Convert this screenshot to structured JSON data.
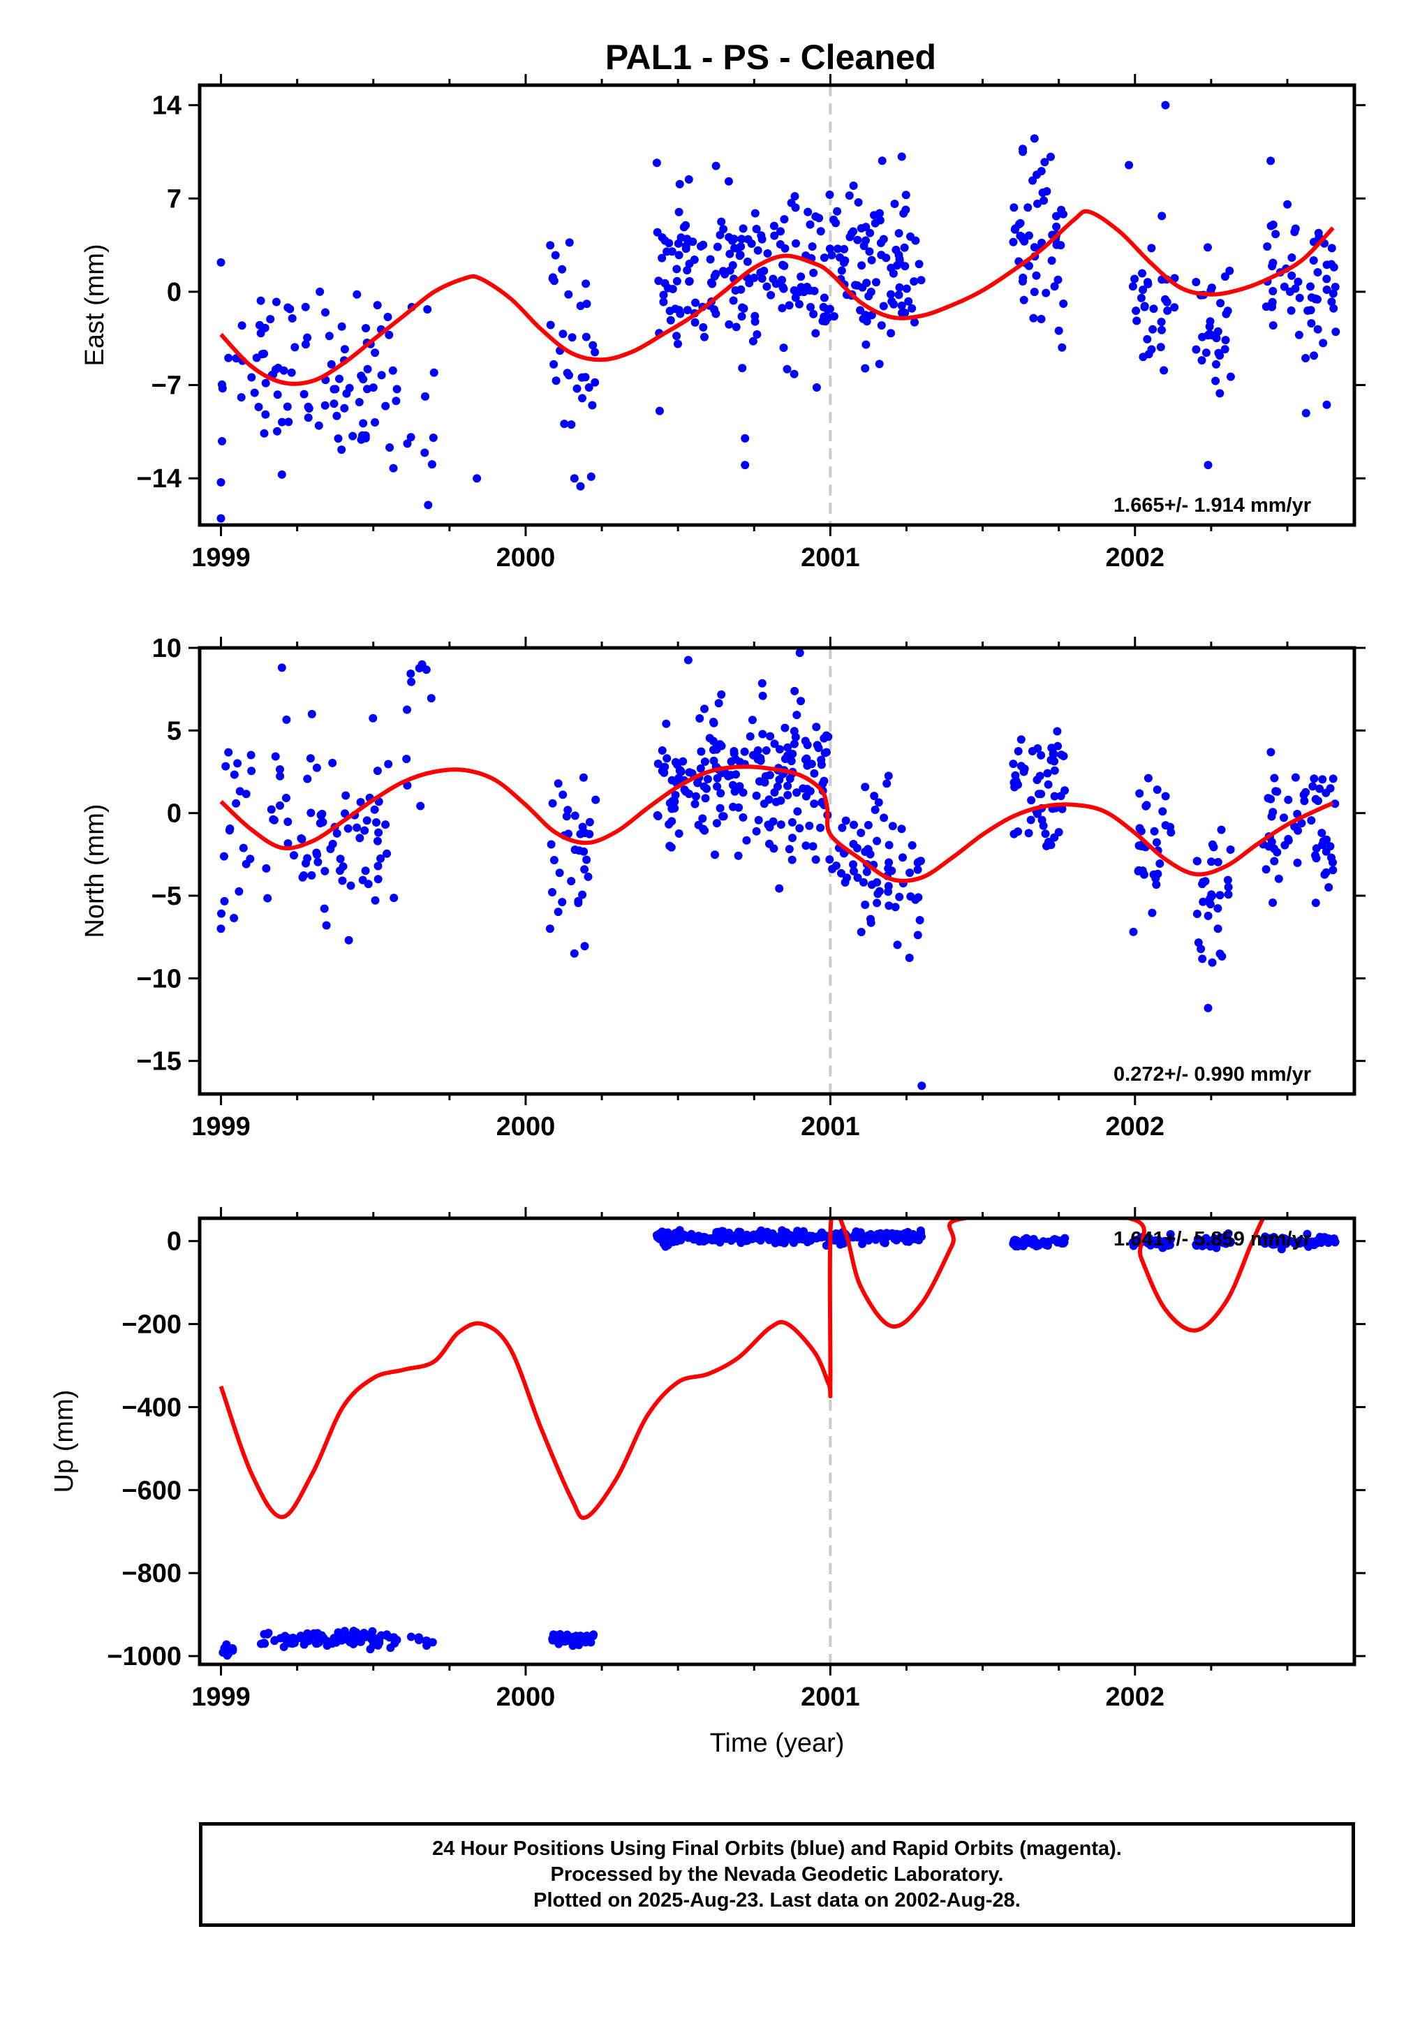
{
  "title": "PAL1  - PS - Cleaned",
  "footer": {
    "line1": "24 Hour Positions Using Final Orbits (blue) and Rapid Orbits (magenta).",
    "line2": "Processed by the Nevada Geodetic Laboratory.",
    "line3": "Plotted on 2025-Aug-23. Last data on 2002-Aug-28."
  },
  "colors": {
    "points": "#0000ff",
    "model": "#ff0000",
    "dashed_line": "#cccccc"
  },
  "chart_data": [
    {
      "type": "scatter",
      "name": "east",
      "ylabel": "East (mm)",
      "xlabel": "",
      "xlim": [
        1998.93,
        2002.72
      ],
      "ylim": [
        -17.5,
        15.5
      ],
      "xticks": [
        1999,
        2000,
        2001,
        2002
      ],
      "xtick_labels": [
        "1999",
        "2000",
        "2001",
        "2002"
      ],
      "yticks": [
        -14,
        -7,
        0,
        7,
        14
      ],
      "ytick_labels": [
        "−14",
        "−7",
        "0",
        "7",
        "14"
      ],
      "vline": 2001.0,
      "rate_label": "1.665+/- 1.914 mm/yr",
      "model_curve": [
        [
          1999.0,
          -3.2
        ],
        [
          1999.1,
          -5.6
        ],
        [
          1999.2,
          -6.8
        ],
        [
          1999.3,
          -6.7
        ],
        [
          1999.4,
          -5.4
        ],
        [
          1999.5,
          -3.6
        ],
        [
          1999.6,
          -1.8
        ],
        [
          1999.7,
          0.0
        ],
        [
          1999.8,
          1.0
        ],
        [
          1999.85,
          1.0
        ],
        [
          1999.95,
          -0.5
        ],
        [
          2000.05,
          -2.8
        ],
        [
          2000.15,
          -4.6
        ],
        [
          2000.25,
          -5.1
        ],
        [
          2000.35,
          -4.5
        ],
        [
          2000.45,
          -3.2
        ],
        [
          2000.55,
          -1.8
        ],
        [
          2000.65,
          0.0
        ],
        [
          2000.75,
          1.8
        ],
        [
          2000.85,
          2.7
        ],
        [
          2000.95,
          2.1
        ],
        [
          2001.0,
          1.4
        ],
        [
          2001.1,
          -0.8
        ],
        [
          2001.2,
          -1.9
        ],
        [
          2001.3,
          -1.8
        ],
        [
          2001.4,
          -1.0
        ],
        [
          2001.5,
          0.1
        ],
        [
          2001.6,
          1.6
        ],
        [
          2001.7,
          3.3
        ],
        [
          2001.8,
          5.4
        ],
        [
          2001.85,
          6.0
        ],
        [
          2001.95,
          4.5
        ],
        [
          2002.05,
          2.2
        ],
        [
          2002.15,
          0.3
        ],
        [
          2002.25,
          -0.2
        ],
        [
          2002.35,
          0.2
        ],
        [
          2002.45,
          1.1
        ],
        [
          2002.55,
          2.4
        ],
        [
          2002.65,
          4.8
        ]
      ],
      "clusters": [
        {
          "x0": 1999.0,
          "x1": 1999.58,
          "ymean": -6,
          "ysd": 3.2,
          "n": 95
        },
        {
          "x0": 1999.6,
          "x1": 1999.7,
          "ymean": -7,
          "ysd": 4.5,
          "n": 9
        },
        {
          "x0": 2000.08,
          "x1": 2000.23,
          "ymean": -5,
          "ysd": 4,
          "n": 32
        },
        {
          "x0": 2000.43,
          "x1": 2001.3,
          "ymean": 1.5,
          "ysd": 3,
          "n": 260
        },
        {
          "x0": 2001.6,
          "x1": 2001.77,
          "ymean": 3.5,
          "ysd": 3,
          "n": 55
        },
        {
          "x0": 2001.99,
          "x1": 2002.13,
          "ymean": -1,
          "ysd": 3.5,
          "n": 30
        },
        {
          "x0": 2002.2,
          "x1": 2002.32,
          "ymean": -3,
          "ysd": 3,
          "n": 30
        },
        {
          "x0": 2002.42,
          "x1": 2002.66,
          "ymean": 0,
          "ysd": 3.2,
          "n": 60
        }
      ],
      "outliers": [
        [
          1999.0,
          -17
        ],
        [
          1999.0,
          -14.3
        ],
        [
          1999.68,
          -16
        ],
        [
          2000.16,
          -14
        ],
        [
          2000.18,
          -14.6
        ],
        [
          1999.84,
          -14
        ],
        [
          2000.72,
          -11
        ],
        [
          2000.72,
          -13
        ],
        [
          2001.98,
          9.5
        ],
        [
          2002.1,
          14
        ],
        [
          2002.24,
          -13
        ],
        [
          1999.0,
          2.2
        ],
        [
          2001.67,
          11.5
        ]
      ]
    },
    {
      "type": "scatter",
      "name": "north",
      "ylabel": "North (mm)",
      "xlabel": "",
      "xlim": [
        1998.93,
        2002.72
      ],
      "ylim": [
        -17,
        10
      ],
      "xticks": [
        1999,
        2000,
        2001,
        2002
      ],
      "xtick_labels": [
        "1999",
        "2000",
        "2001",
        "2002"
      ],
      "yticks": [
        -15,
        -10,
        -5,
        0,
        5,
        10
      ],
      "ytick_labels": [
        "−15",
        "−10",
        "−5",
        "0",
        "5",
        "10"
      ],
      "vline": 2001.0,
      "rate_label": "0.272+/- 0.990 mm/yr",
      "model_curve": [
        [
          1999.0,
          0.7
        ],
        [
          1999.1,
          -1.0
        ],
        [
          1999.2,
          -2.1
        ],
        [
          1999.3,
          -1.7
        ],
        [
          1999.4,
          -0.5
        ],
        [
          1999.5,
          0.8
        ],
        [
          1999.6,
          1.9
        ],
        [
          1999.7,
          2.5
        ],
        [
          1999.8,
          2.6
        ],
        [
          1999.9,
          2.0
        ],
        [
          2000.0,
          0.5
        ],
        [
          2000.1,
          -1.2
        ],
        [
          2000.2,
          -1.8
        ],
        [
          2000.3,
          -1.1
        ],
        [
          2000.4,
          0.3
        ],
        [
          2000.5,
          1.6
        ],
        [
          2000.6,
          2.5
        ],
        [
          2000.7,
          2.8
        ],
        [
          2000.8,
          2.7
        ],
        [
          2000.9,
          2.3
        ],
        [
          2000.97,
          1.4
        ],
        [
          2000.99,
          0.3
        ],
        [
          2001.0,
          -1.3
        ],
        [
          2001.1,
          -2.8
        ],
        [
          2001.2,
          -4.0
        ],
        [
          2001.3,
          -3.9
        ],
        [
          2001.4,
          -2.7
        ],
        [
          2001.5,
          -1.3
        ],
        [
          2001.6,
          -0.2
        ],
        [
          2001.7,
          0.4
        ],
        [
          2001.8,
          0.5
        ],
        [
          2001.9,
          0.1
        ],
        [
          2002.0,
          -1.2
        ],
        [
          2002.1,
          -2.8
        ],
        [
          2002.2,
          -3.7
        ],
        [
          2002.3,
          -3.2
        ],
        [
          2002.4,
          -1.9
        ],
        [
          2002.5,
          -0.7
        ],
        [
          2002.6,
          0.2
        ],
        [
          2002.65,
          0.6
        ]
      ],
      "clusters": [
        {
          "x0": 1999.0,
          "x1": 1999.58,
          "ymean": -1,
          "ysd": 2.8,
          "n": 95
        },
        {
          "x0": 1999.6,
          "x1": 1999.7,
          "ymean": 5,
          "ysd": 2.5,
          "n": 9
        },
        {
          "x0": 2000.08,
          "x1": 2000.23,
          "ymean": -2,
          "ysd": 2.5,
          "n": 32
        },
        {
          "x0": 2000.43,
          "x1": 2001.0,
          "ymean": 2,
          "ysd": 2.3,
          "n": 200
        },
        {
          "x0": 2001.0,
          "x1": 2001.3,
          "ymean": -3,
          "ysd": 2.2,
          "n": 70
        },
        {
          "x0": 2001.6,
          "x1": 2001.77,
          "ymean": 1,
          "ysd": 2.2,
          "n": 55
        },
        {
          "x0": 2001.99,
          "x1": 2002.13,
          "ymean": -3,
          "ysd": 2.3,
          "n": 30
        },
        {
          "x0": 2002.2,
          "x1": 2002.32,
          "ymean": -5,
          "ysd": 2.5,
          "n": 30
        },
        {
          "x0": 2002.42,
          "x1": 2002.66,
          "ymean": -1,
          "ysd": 2.2,
          "n": 60
        }
      ],
      "outliers": [
        [
          1999.0,
          -7
        ],
        [
          1999.2,
          8.8
        ],
        [
          2000.08,
          -7
        ],
        [
          2000.16,
          -8.5
        ],
        [
          2001.3,
          -16.5
        ],
        [
          2002.24,
          -11.8
        ],
        [
          2000.9,
          9.7
        ],
        [
          1999.66,
          9
        ]
      ]
    },
    {
      "type": "scatter",
      "name": "up",
      "ylabel": "Up (mm)",
      "xlabel": "Time (year)",
      "xlim": [
        1998.93,
        2002.72
      ],
      "ylim": [
        -1020,
        55
      ],
      "xticks": [
        1999,
        2000,
        2001,
        2002
      ],
      "xtick_labels": [
        "1999",
        "2000",
        "2001",
        "2002"
      ],
      "yticks": [
        -1000,
        -800,
        -600,
        -400,
        -200,
        0
      ],
      "ytick_labels": [
        "−1000",
        "−800",
        "−600",
        "−400",
        "−200",
        "0"
      ],
      "vline": 2001.0,
      "rate_label": "1.641+/- 5.859 mm/yr",
      "model_curve": [
        [
          1999.0,
          -350
        ],
        [
          1999.1,
          -560
        ],
        [
          1999.2,
          -665
        ],
        [
          1999.3,
          -560
        ],
        [
          1999.4,
          -400
        ],
        [
          1999.5,
          -330
        ],
        [
          1999.6,
          -310
        ],
        [
          1999.7,
          -290
        ],
        [
          1999.78,
          -220
        ],
        [
          1999.86,
          -200
        ],
        [
          1999.95,
          -260
        ],
        [
          2000.05,
          -450
        ],
        [
          2000.15,
          -620
        ],
        [
          2000.2,
          -665
        ],
        [
          2000.3,
          -570
        ],
        [
          2000.4,
          -420
        ],
        [
          2000.5,
          -340
        ],
        [
          2000.6,
          -320
        ],
        [
          2000.7,
          -280
        ],
        [
          2000.8,
          -210
        ],
        [
          2000.86,
          -200
        ],
        [
          2000.95,
          -270
        ],
        [
          2000.995,
          -345
        ],
        [
          2001.0,
          -340
        ],
        [
          2001.003,
          55
        ],
        [
          2001.05,
          20
        ],
        [
          2001.1,
          -110
        ],
        [
          2001.2,
          -205
        ],
        [
          2001.3,
          -150
        ],
        [
          2001.4,
          -10
        ],
        [
          2001.44,
          55
        ],
        [
          2001.98,
          55
        ],
        [
          2002.02,
          -40
        ],
        [
          2002.1,
          -165
        ],
        [
          2002.2,
          -215
        ],
        [
          2002.3,
          -145
        ],
        [
          2002.38,
          -10
        ],
        [
          2002.42,
          55
        ]
      ],
      "clusters": [
        {
          "x0": 1999.0,
          "x1": 1999.04,
          "ymean": -985,
          "ysd": 8,
          "n": 10
        },
        {
          "x0": 1999.12,
          "x1": 1999.58,
          "ymean": -960,
          "ysd": 9,
          "n": 85
        },
        {
          "x0": 1999.62,
          "x1": 1999.7,
          "ymean": -962,
          "ysd": 8,
          "n": 8
        },
        {
          "x0": 2000.08,
          "x1": 2000.23,
          "ymean": -958,
          "ysd": 8,
          "n": 30
        },
        {
          "x0": 2000.43,
          "x1": 2001.3,
          "ymean": 10,
          "ysd": 7,
          "n": 260
        },
        {
          "x0": 2001.6,
          "x1": 2001.77,
          "ymean": -5,
          "ysd": 6,
          "n": 55
        },
        {
          "x0": 2001.99,
          "x1": 2002.13,
          "ymean": 0,
          "ysd": 7,
          "n": 30
        },
        {
          "x0": 2002.2,
          "x1": 2002.32,
          "ymean": 0,
          "ysd": 7,
          "n": 30
        },
        {
          "x0": 2002.42,
          "x1": 2002.66,
          "ymean": -2,
          "ysd": 7,
          "n": 60
        }
      ],
      "outliers": []
    }
  ]
}
